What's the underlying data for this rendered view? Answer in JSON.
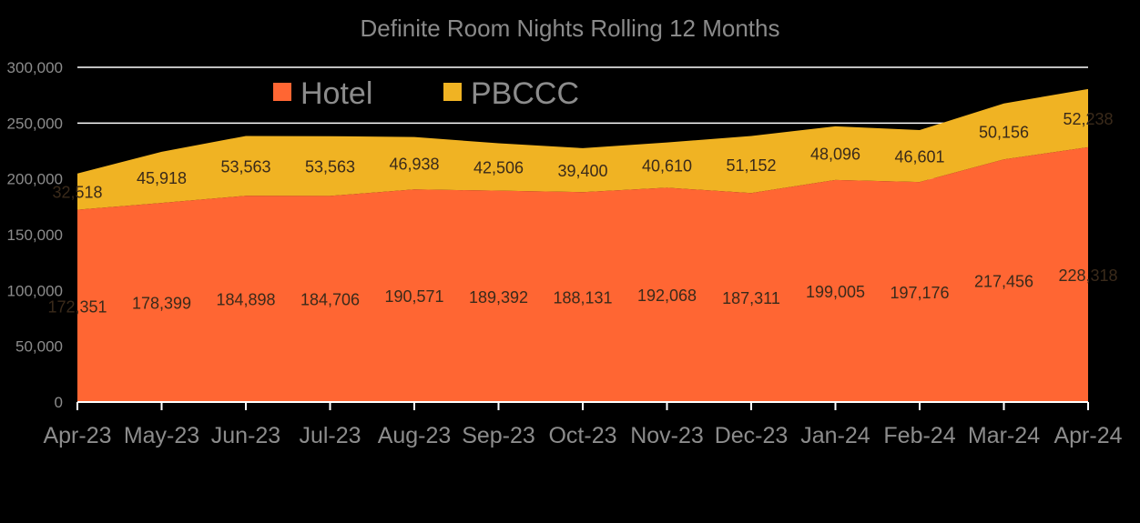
{
  "chart_data": {
    "type": "area",
    "stacked": true,
    "title": "Definite Room Nights  Rolling  12 Months",
    "categories": [
      "Apr-23",
      "May-23",
      "Jun-23",
      "Jul-23",
      "Aug-23",
      "Sep-23",
      "Oct-23",
      "Nov-23",
      "Dec-23",
      "Jan-24",
      "Feb-24",
      "Mar-24",
      "Apr-24"
    ],
    "series": [
      {
        "name": "Hotel",
        "color": "#ff6633",
        "values": [
          172351,
          178399,
          184898,
          184706,
          190571,
          189392,
          188131,
          192068,
          187311,
          199005,
          197176,
          217456,
          228318
        ]
      },
      {
        "name": "PBCCC",
        "color": "#f0b323",
        "values": [
          32518,
          45918,
          53563,
          53563,
          46938,
          42506,
          39400,
          40610,
          51152,
          48096,
          46601,
          50156,
          52238
        ]
      }
    ],
    "series_labels": [
      [
        "172,351",
        "178,399",
        "184,898",
        "184,706",
        "190,571",
        "189,392",
        "188,131",
        "192,068",
        "187,311",
        "199,005",
        "197,176",
        "217,456",
        "228,318"
      ],
      [
        "32,518",
        "45,918",
        "53,563",
        "53,563",
        "46,938",
        "42,506",
        "39,400",
        "40,610",
        "51,152",
        "48,096",
        "46,601",
        "50,156",
        "52,238"
      ]
    ],
    "ylim": [
      0,
      300000
    ],
    "yticks": [
      0,
      50000,
      100000,
      150000,
      200000,
      250000,
      300000
    ],
    "ytick_labels": [
      "0",
      "50,000",
      "100,000",
      "150,000",
      "200,000",
      "250,000",
      "300,000"
    ],
    "grid": true,
    "legend": "top-left"
  },
  "colors": {
    "background": "#000000",
    "text": "#8c8c8c",
    "gridline": "#ffffff"
  }
}
